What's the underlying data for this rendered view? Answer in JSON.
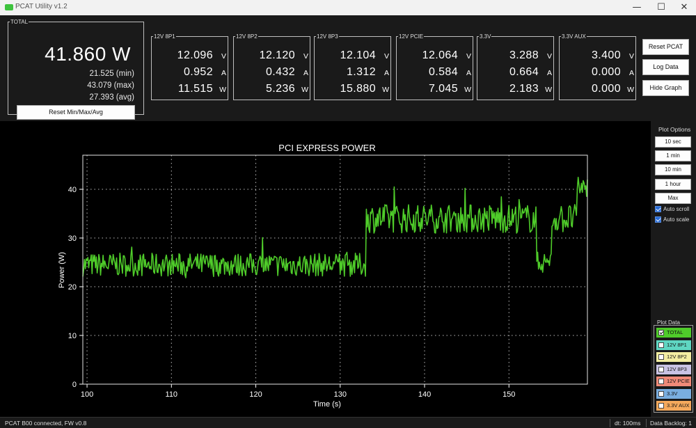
{
  "window": {
    "title": "PCAT Utility v1.2",
    "minimize_glyph": "—",
    "maximize_glyph": "☐",
    "close_glyph": "✕"
  },
  "total": {
    "legend": "TOTAL",
    "value": "41.860 W",
    "min": "21.525 (min)",
    "max": "43.079 (max)",
    "avg": "27.393 (avg)",
    "reset_label": "Reset Min/Max/Avg"
  },
  "rails": [
    {
      "name": "12V 8P1",
      "voltage": "12.096",
      "current": "0.952",
      "power": "11.515"
    },
    {
      "name": "12V 8P2",
      "voltage": "12.120",
      "current": "0.432",
      "power": "5.236"
    },
    {
      "name": "12V 8P3",
      "voltage": "12.104",
      "current": "1.312",
      "power": "15.880"
    },
    {
      "name": "12V PCIE",
      "voltage": "12.064",
      "current": "0.584",
      "power": "7.045"
    },
    {
      "name": "3.3V",
      "voltage": "3.288",
      "current": "0.664",
      "power": "2.183"
    },
    {
      "name": "3.3V AUX",
      "voltage": "3.400",
      "current": "0.000",
      "power": "0.000"
    }
  ],
  "units": {
    "volt": "V",
    "amp": "A",
    "watt": "W"
  },
  "actions": {
    "reset_pcat": "Reset PCAT",
    "log_data": "Log Data",
    "hide_graph": "Hide Graph"
  },
  "plot_options": {
    "label": "Plot Options",
    "buttons": [
      "10 sec",
      "1 min",
      "10 min",
      "1 hour",
      "Max"
    ],
    "auto_scroll": "Auto scroll",
    "auto_scale": "Auto scale"
  },
  "plot_data": {
    "label": "Plot Data",
    "items": [
      {
        "label": "TOTAL",
        "color": "#4fcc2a",
        "checked": true
      },
      {
        "label": "12V 8P1",
        "color": "#5fd6c2",
        "checked": false
      },
      {
        "label": "12V 8P2",
        "color": "#f3eea2",
        "checked": false
      },
      {
        "label": "12V 8P3",
        "color": "#c9c3e4",
        "checked": false
      },
      {
        "label": "12V PCIE",
        "color": "#f08a78",
        "checked": false
      },
      {
        "label": "3.3V",
        "color": "#79aee0",
        "checked": false
      },
      {
        "label": "3.3V AUX",
        "color": "#f5a95c",
        "checked": false
      }
    ]
  },
  "status": {
    "left": "PCAT B00 connected, FW v0.8",
    "dt": "dt: 100ms",
    "backlog": "Data Backlog: 1"
  },
  "chart_data": {
    "type": "line",
    "title": "PCI EXPRESS POWER",
    "xlabel": "Time (s)",
    "ylabel": "Power (W)",
    "xlim": [
      99.5,
      159.3
    ],
    "ylim": [
      0,
      47
    ],
    "xticks": [
      100,
      110,
      120,
      130,
      140,
      150
    ],
    "yticks": [
      0,
      10,
      20,
      30,
      40
    ],
    "grid": true,
    "series": [
      {
        "color": "#4fcc2a",
        "segments": [
          {
            "x_start": 99.5,
            "x_end": 133.0,
            "level": 24.5
          },
          {
            "x_start": 133.0,
            "x_end": 158.0,
            "level": 34.0
          },
          {
            "x_start": 153.2,
            "x_end": 155.0,
            "level": 25.0
          },
          {
            "x_start": 158.0,
            "x_end": 159.3,
            "level": 40.5
          }
        ]
      }
    ]
  }
}
